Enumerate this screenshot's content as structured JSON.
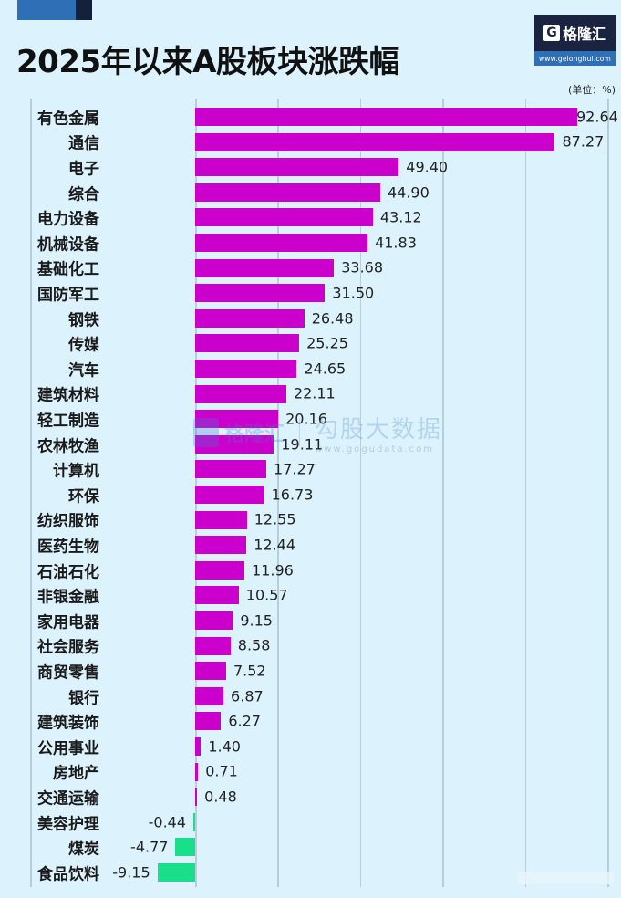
{
  "header": {
    "title": "2025年以来A股板块涨跌幅",
    "unit": "(单位：%)",
    "logo": {
      "icon": "G",
      "name": "格隆汇",
      "url": "www.gelonghui.com"
    }
  },
  "watermark": {
    "left_text": "格隆汇",
    "right_text": "勾股大数据",
    "url": "www.gogudata.com"
  },
  "colors": {
    "background": "#dcf2fd",
    "positive_bar": "#cc00cc",
    "negative_bar": "#19df8a",
    "gridline": "#b7cfdd"
  },
  "chart_data": {
    "type": "bar",
    "orientation": "horizontal",
    "title": "2025年以来A股板块涨跌幅",
    "unit": "%",
    "xlabel": "",
    "ylabel": "",
    "xlim": [
      -40,
      100
    ],
    "grid": true,
    "gridlines_at": [
      -40,
      0,
      20,
      40,
      60,
      80,
      100
    ],
    "legend": null,
    "categories": [
      "有色金属",
      "通信",
      "电子",
      "综合",
      "电力设备",
      "机械设备",
      "基础化工",
      "国防军工",
      "钢铁",
      "传媒",
      "汽车",
      "建筑材料",
      "轻工制造",
      "农林牧渔",
      "计算机",
      "环保",
      "纺织服饰",
      "医药生物",
      "石油石化",
      "非银金融",
      "家用电器",
      "社会服务",
      "商贸零售",
      "银行",
      "建筑装饰",
      "公用事业",
      "房地产",
      "交通运输",
      "美容护理",
      "煤炭",
      "食品饮料"
    ],
    "values": [
      92.64,
      87.27,
      49.4,
      44.9,
      43.12,
      41.83,
      33.68,
      31.5,
      26.48,
      25.25,
      24.65,
      22.11,
      20.16,
      19.11,
      17.27,
      16.73,
      12.55,
      12.44,
      11.96,
      10.57,
      9.15,
      8.58,
      7.52,
      6.87,
      6.27,
      1.4,
      0.71,
      0.48,
      -0.44,
      -4.77,
      -9.15
    ],
    "labels": [
      "92.64",
      "87.27",
      "49.40",
      "44.90",
      "43.12",
      "41.83",
      "33.68",
      "31.50",
      "26.48",
      "25.25",
      "24.65",
      "22.11",
      "20.16",
      "19.11",
      "17.27",
      "16.73",
      "12.55",
      "12.44",
      "11.96",
      "10.57",
      "9.15",
      "8.58",
      "7.52",
      "6.87",
      "6.27",
      "1.40",
      "0.71",
      "0.48",
      "-0.44",
      "-4.77",
      "-9.15"
    ]
  }
}
